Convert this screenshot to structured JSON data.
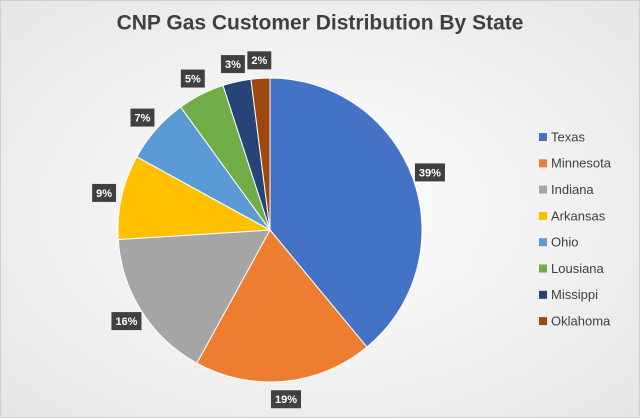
{
  "chart_data": {
    "type": "pie",
    "title": "CNP Gas Customer Distribution By State",
    "categories": [
      "Texas",
      "Minnesota",
      "Indiana",
      "Arkansas",
      "Ohio",
      "Lousiana",
      "Missippi",
      "Oklahoma"
    ],
    "values": [
      39,
      19,
      16,
      9,
      7,
      5,
      3,
      2
    ],
    "value_labels": [
      "39%",
      "19%",
      "16%",
      "9%",
      "7%",
      "5%",
      "3%",
      "2%"
    ],
    "colors": [
      "#4472c4",
      "#ed7d31",
      "#a5a5a5",
      "#ffc000",
      "#5b9bd5",
      "#70ad47",
      "#264478",
      "#9e480e"
    ],
    "legend": "right"
  }
}
